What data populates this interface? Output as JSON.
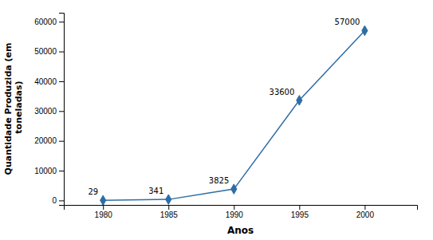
{
  "chart_data": {
    "type": "line",
    "x": [
      1980,
      1985,
      1990,
      1995,
      2000
    ],
    "values": [
      29,
      341,
      3825,
      33600,
      57000
    ],
    "color": "#2E6DA4",
    "marker": "diamond",
    "xlabel": "Anos",
    "ylabel": "Quantidade Produzida (em\n toneladas)",
    "xlim": [
      1977,
      2004
    ],
    "ylim": [
      -1500,
      63000
    ],
    "xticks": [
      1980,
      1985,
      1990,
      1995,
      2000
    ],
    "yticks": [
      0,
      10000,
      20000,
      30000,
      40000,
      50000,
      60000
    ],
    "grid": false,
    "data_labels": true
  }
}
